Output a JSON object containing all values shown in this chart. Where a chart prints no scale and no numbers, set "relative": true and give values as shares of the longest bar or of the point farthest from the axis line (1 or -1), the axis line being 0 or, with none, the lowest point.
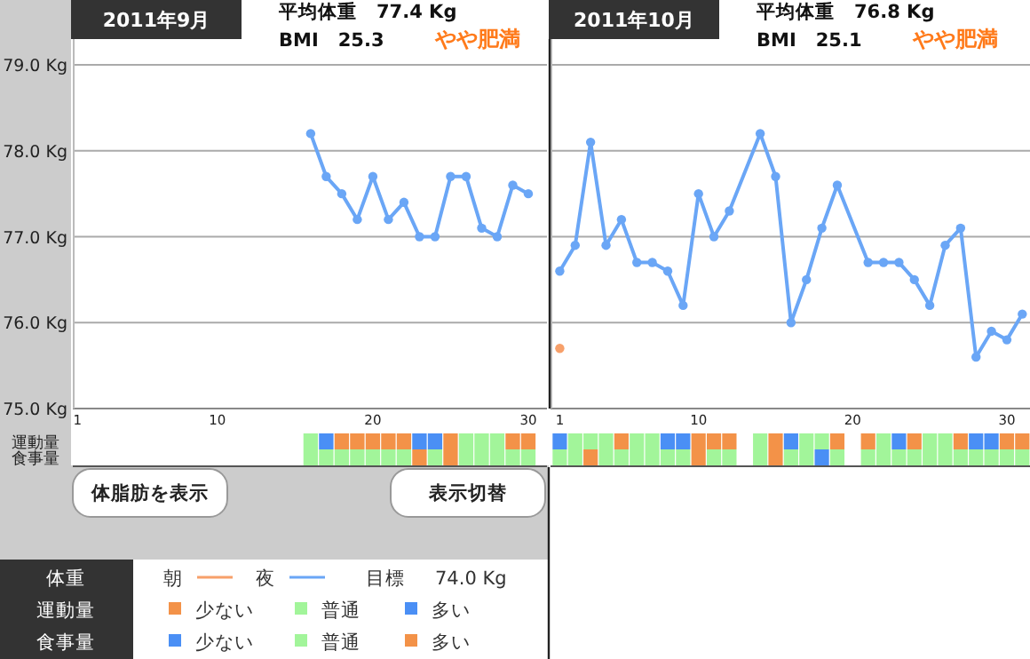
{
  "chart_data": [
    {
      "type": "line",
      "title": "2011年9月",
      "annotations": [
        "平均体重　77.4 Kg",
        "BMI　25.3",
        "やや肥満"
      ],
      "x": [
        16,
        17,
        18,
        19,
        20,
        21,
        22,
        23,
        24,
        25,
        26,
        27,
        28,
        29,
        30
      ],
      "xlim": [
        0.7,
        31.2
      ],
      "ylim": [
        75,
        79.3
      ],
      "yticks": [
        {
          "value": 75,
          "label": "75.0 Kg"
        },
        {
          "value": 76,
          "label": "76.0 Kg"
        },
        {
          "value": 77,
          "label": "77.0 Kg"
        },
        {
          "value": 78,
          "label": "78.0 Kg"
        },
        {
          "value": 79,
          "label": "79.0 Kg"
        }
      ],
      "tick_labels": "y",
      "grid": "y",
      "marker": "circle",
      "series": [
        {
          "color": "#6aa6f6",
          "values": [
            78.2,
            77.7,
            77.5,
            77.2,
            77.7,
            77.2,
            77.4,
            77.0,
            77.0,
            77.7,
            77.7,
            77.1,
            77.0,
            77.6,
            77.5
          ]
        }
      ]
    },
    {
      "type": "line",
      "title": "2011年10月",
      "annotations": [
        "平均体重　76.8 Kg",
        "BMI　25.1",
        "やや肥満",
        "目標",
        "74.0 Kg"
      ],
      "xlim": [
        0.4,
        31.5
      ],
      "ylim": [
        75,
        79.3
      ],
      "yticks": [
        75,
        76,
        77,
        78,
        79
      ],
      "tick_labels": false,
      "grid": "y",
      "marker": "circle",
      "legend": "bottom",
      "legend_title": "体重",
      "series": [
        {
          "name": "朝",
          "color": "#f7a06a",
          "x": [
            1
          ],
          "values": [
            75.7
          ]
        },
        {
          "name": "夜",
          "color": "#6aa6f6",
          "x": [
            1,
            2,
            3,
            4,
            5,
            6,
            7,
            8,
            9,
            10,
            11,
            12,
            14,
            15,
            16,
            17,
            18,
            19,
            21,
            22,
            23,
            24,
            25,
            26,
            27,
            28,
            29,
            30,
            31
          ],
          "values": [
            76.6,
            76.9,
            78.1,
            76.9,
            77.2,
            76.7,
            76.7,
            76.6,
            76.2,
            77.5,
            77.0,
            77.3,
            78.2,
            77.7,
            76.0,
            76.5,
            77.1,
            77.6,
            76.7,
            76.7,
            76.7,
            76.5,
            76.2,
            76.9,
            77.1,
            75.6,
            75.9,
            75.8,
            76.1
          ]
        }
      ]
    },
    {
      "type": "bar",
      "stacked": true,
      "relative": true,
      "annotations": [
        "運動量",
        "食事量"
      ],
      "x": [
        16,
        17,
        18,
        19,
        20,
        21,
        22,
        23,
        24,
        25,
        26,
        27,
        28,
        29,
        30
      ],
      "xlim": [
        0.7,
        31.2
      ],
      "xticks": [
        1,
        10,
        20,
        30
      ],
      "series": [
        {
          "color": "#a2f59a",
          "values": [
            0.5,
            0.5,
            0.5,
            0.5,
            0.5,
            0.5,
            0.5,
            null,
            0.5,
            null,
            0.5,
            0.5,
            0.5,
            0.5,
            0.5
          ]
        },
        {
          "color": "#f39248",
          "values": [
            null,
            null,
            null,
            null,
            null,
            null,
            null,
            0.5,
            null,
            0.5,
            null,
            null,
            null,
            null,
            null
          ]
        },
        {
          "color": "#f39248",
          "values": [
            null,
            null,
            0.5,
            0.5,
            0.5,
            0.5,
            0.5,
            null,
            null,
            0.5,
            null,
            null,
            null,
            0.5,
            0.5
          ]
        },
        {
          "color": "#a2f59a",
          "values": [
            0.5,
            null,
            null,
            null,
            null,
            null,
            null,
            null,
            null,
            null,
            0.5,
            0.5,
            0.5,
            null,
            null
          ]
        },
        {
          "color": "#4a8ff5",
          "values": [
            null,
            0.5,
            null,
            null,
            null,
            null,
            null,
            0.5,
            0.5,
            null,
            null,
            null,
            null,
            null,
            null
          ]
        }
      ]
    },
    {
      "type": "bar",
      "stacked": true,
      "relative": true,
      "annotations": [
        "運動量",
        "食事量"
      ],
      "x": [
        1,
        2,
        3,
        4,
        5,
        6,
        7,
        8,
        9,
        10,
        11,
        12,
        14,
        15,
        16,
        17,
        18,
        19,
        21,
        22,
        23,
        24,
        25,
        26,
        27,
        28,
        29,
        30,
        31
      ],
      "xlim": [
        0.4,
        31.5
      ],
      "xticks": [
        1,
        10,
        20,
        30
      ],
      "tick_labels": "x",
      "legend": "bottom",
      "series": [
        {
          "name": "少ない",
          "color": "#4a8ff5",
          "values": [
            null,
            null,
            null,
            null,
            null,
            null,
            null,
            null,
            null,
            null,
            null,
            null,
            null,
            null,
            null,
            null,
            0.5,
            null,
            null,
            null,
            null,
            null,
            null,
            null,
            null,
            null,
            null,
            null,
            null
          ]
        },
        {
          "name": "普通",
          "color": "#a2f59a",
          "values": [
            0.5,
            0.5,
            null,
            0.5,
            0.5,
            0.5,
            0.5,
            0.5,
            0.5,
            null,
            0.5,
            0.5,
            0.5,
            null,
            0.5,
            0.5,
            null,
            0.5,
            0.5,
            0.5,
            0.5,
            0.5,
            0.5,
            0.5,
            0.5,
            0.5,
            0.5,
            0.5,
            0.5
          ]
        },
        {
          "name": "多い",
          "color": "#f39248",
          "values": [
            null,
            null,
            0.5,
            null,
            null,
            null,
            null,
            null,
            null,
            0.5,
            null,
            null,
            null,
            0.5,
            null,
            null,
            null,
            null,
            null,
            null,
            null,
            null,
            null,
            null,
            null,
            null,
            null,
            null,
            null
          ]
        },
        {
          "name": "少ない",
          "color": "#f39248",
          "values": [
            null,
            null,
            null,
            null,
            0.5,
            null,
            null,
            null,
            null,
            0.5,
            0.5,
            0.5,
            null,
            0.5,
            null,
            null,
            null,
            0.5,
            0.5,
            null,
            null,
            0.5,
            null,
            null,
            0.5,
            null,
            null,
            0.5,
            0.5
          ]
        },
        {
          "name": "普通",
          "color": "#a2f59a",
          "values": [
            null,
            0.5,
            0.5,
            0.5,
            null,
            0.5,
            0.5,
            null,
            null,
            null,
            null,
            null,
            0.5,
            null,
            null,
            0.5,
            0.5,
            null,
            null,
            0.5,
            null,
            null,
            0.5,
            0.5,
            null,
            null,
            null,
            null,
            null
          ]
        },
        {
          "name": "多い",
          "color": "#4a8ff5",
          "values": [
            0.5,
            null,
            null,
            null,
            null,
            null,
            null,
            0.5,
            0.5,
            null,
            null,
            null,
            null,
            null,
            0.5,
            null,
            null,
            null,
            null,
            null,
            0.5,
            null,
            null,
            null,
            null,
            0.5,
            0.5,
            null,
            null
          ]
        }
      ]
    },
    {
      "type": "other",
      "annotations": [
        "体脂肪を表示",
        "表示切替"
      ]
    }
  ]
}
